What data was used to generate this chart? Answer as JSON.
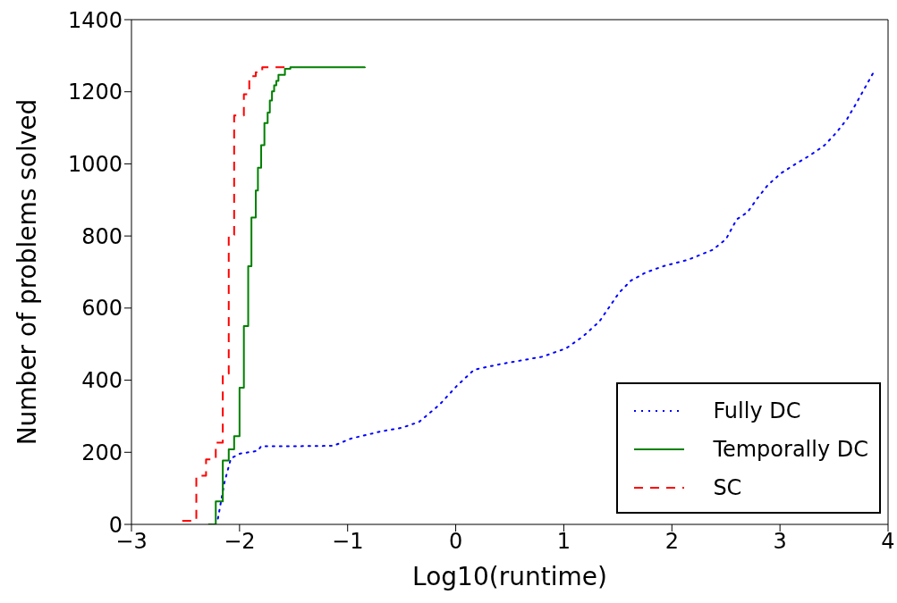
{
  "chart_data": {
    "type": "line",
    "xlabel": "Log10(runtime)",
    "ylabel": "Number of problems solved",
    "xlim": [
      -3,
      4
    ],
    "xticks": [
      {
        "value": -3,
        "label": "−3"
      },
      {
        "value": -2,
        "label": "−2"
      },
      {
        "value": -1,
        "label": "−1"
      },
      0,
      1,
      2,
      3,
      4
    ],
    "ylim": [
      0,
      1400
    ],
    "yticks": [
      0,
      200,
      400,
      600,
      800,
      1000,
      1200,
      1400
    ],
    "grid": false,
    "legend": "bottom right",
    "series": [
      {
        "name": "Fully DC",
        "type": "line",
        "line_style": "dotted",
        "color": "#0000ff",
        "x": [
          -2.2,
          -2.14,
          -2.08,
          -2.0,
          -1.83,
          -1.8,
          -1.47,
          -1.13,
          -0.97,
          -0.69,
          -0.5,
          -0.34,
          -0.15,
          0.01,
          0.17,
          0.42,
          0.8,
          1.02,
          1.18,
          1.33,
          1.51,
          1.62,
          1.76,
          1.92,
          2.15,
          2.38,
          2.5,
          2.6,
          2.7,
          2.79,
          2.89,
          3.01,
          3.14,
          3.28,
          3.41,
          3.52,
          3.62,
          3.7,
          3.78,
          3.86
        ],
        "values": [
          16,
          116,
          183,
          196,
          204,
          217,
          217,
          218,
          238,
          258,
          268,
          284,
          332,
          384,
          429,
          445,
          465,
          488,
          522,
          563,
          642,
          676,
          699,
          716,
          734,
          762,
          791,
          846,
          866,
          904,
          942,
          974,
          999,
          1024,
          1051,
          1086,
          1124,
          1165,
          1208,
          1251
        ]
      },
      {
        "name": "Temporally DC",
        "type": "step",
        "line_style": "solid",
        "color": "#008000",
        "x": [
          -2.29,
          -2.22,
          -2.155,
          -2.1,
          -2.05,
          -2.0,
          -1.96,
          -1.92,
          -1.89,
          -1.85,
          -1.83,
          -1.8,
          -1.77,
          -1.74,
          -1.72,
          -1.7,
          -1.68,
          -1.66,
          -1.64,
          -1.58,
          -1.53,
          -0.84
        ],
        "values": [
          0,
          64,
          177,
          208,
          245,
          379,
          550,
          716,
          851,
          926,
          989,
          1052,
          1113,
          1142,
          1176,
          1201,
          1218,
          1230,
          1247,
          1264,
          1268,
          1269
        ]
      },
      {
        "name": "SC",
        "type": "step",
        "line_style": "dashed",
        "color": "#ff0000",
        "x": [
          -2.53,
          -2.4,
          -2.31,
          -2.22,
          -2.155,
          -2.1,
          -2.05,
          -1.96,
          -1.91,
          -1.85,
          -1.79,
          -1.57
        ],
        "values": [
          10,
          135,
          180,
          227,
          418,
          803,
          1134,
          1193,
          1243,
          1254,
          1268,
          1268
        ]
      }
    ]
  }
}
